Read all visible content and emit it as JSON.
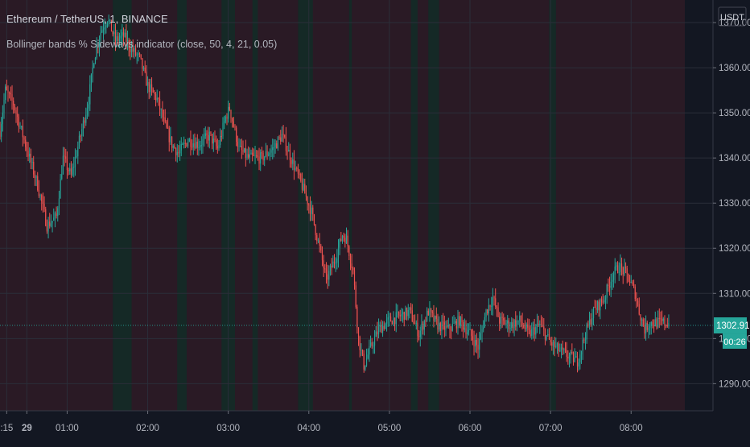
{
  "header": {
    "title": "Ethereum / TetherUS, 1, BINANCE",
    "indicator": "Bollinger bands % Sideways indicator (close, 50, 4, 21, 0.05)"
  },
  "axis": {
    "currency": "USDT",
    "current_price": "1302.91",
    "countdown": "00:26"
  },
  "colors": {
    "background": "#131722",
    "band_default": "#2a1a25",
    "band_sideways": "#142a26",
    "candle_up": "#26a69a",
    "candle_down": "#ef5350",
    "price_label": "#26a69a",
    "grid": "#2a2e39",
    "axis_text": "#b2b5be"
  },
  "chart_data": {
    "type": "candlestick",
    "title": "Ethereum / TetherUS, 1, BINANCE",
    "y_ticks": [
      1290,
      1300,
      1310,
      1320,
      1330,
      1340,
      1350,
      1360,
      1370
    ],
    "y_tick_labels": [
      "1290.00",
      "1300.00",
      "1310.00",
      "1320.00",
      "1330.00",
      "1340.00",
      "1350.00",
      "1360.00",
      "1370.00"
    ],
    "ylim": [
      1284,
      1375
    ],
    "x_tick_labels": [
      ":15",
      "29",
      "01:00",
      "02:00",
      "03:00",
      "04:00",
      "05:00",
      "06:00",
      "07:00",
      "08:00"
    ],
    "x_tick_minutes": [
      15,
      30,
      60,
      120,
      180,
      240,
      300,
      360,
      420,
      480
    ],
    "x_range_minutes": [
      10,
      520
    ],
    "last_candle_minute": 508,
    "sideways_periods": [
      [
        94,
        108
      ],
      [
        142,
        149
      ],
      [
        175,
        185
      ],
      [
        198,
        202
      ],
      [
        232,
        243
      ],
      [
        270,
        272
      ],
      [
        316,
        321
      ],
      [
        329,
        337
      ],
      [
        419,
        424
      ]
    ],
    "price_path": [
      [
        10,
        1346
      ],
      [
        14,
        1355
      ],
      [
        20,
        1352
      ],
      [
        30,
        1342
      ],
      [
        38,
        1334
      ],
      [
        45,
        1325
      ],
      [
        52,
        1327
      ],
      [
        57,
        1340
      ],
      [
        63,
        1336
      ],
      [
        70,
        1345
      ],
      [
        76,
        1353
      ],
      [
        80,
        1362
      ],
      [
        85,
        1368
      ],
      [
        90,
        1371
      ],
      [
        96,
        1366
      ],
      [
        102,
        1367
      ],
      [
        108,
        1364
      ],
      [
        114,
        1362
      ],
      [
        120,
        1356
      ],
      [
        127,
        1353
      ],
      [
        133,
        1347
      ],
      [
        138,
        1343
      ],
      [
        143,
        1341
      ],
      [
        150,
        1344
      ],
      [
        158,
        1343
      ],
      [
        166,
        1345
      ],
      [
        172,
        1342
      ],
      [
        178,
        1349
      ],
      [
        181,
        1351
      ],
      [
        188,
        1342
      ],
      [
        195,
        1340
      ],
      [
        205,
        1340
      ],
      [
        213,
        1342
      ],
      [
        220,
        1345
      ],
      [
        228,
        1339
      ],
      [
        236,
        1333
      ],
      [
        242,
        1328
      ],
      [
        248,
        1320
      ],
      [
        253,
        1313
      ],
      [
        260,
        1318
      ],
      [
        265,
        1323
      ],
      [
        268,
        1322
      ],
      [
        273,
        1315
      ],
      [
        277,
        1300
      ],
      [
        281,
        1294
      ],
      [
        286,
        1298
      ],
      [
        292,
        1302
      ],
      [
        300,
        1304
      ],
      [
        308,
        1305
      ],
      [
        315,
        1306
      ],
      [
        322,
        1301
      ],
      [
        329,
        1306
      ],
      [
        336,
        1303
      ],
      [
        344,
        1302
      ],
      [
        352,
        1304
      ],
      [
        360,
        1301
      ],
      [
        366,
        1298
      ],
      [
        372,
        1306
      ],
      [
        377,
        1309
      ],
      [
        382,
        1304
      ],
      [
        390,
        1303
      ],
      [
        397,
        1304
      ],
      [
        404,
        1301
      ],
      [
        412,
        1303
      ],
      [
        420,
        1299
      ],
      [
        428,
        1297
      ],
      [
        434,
        1296
      ],
      [
        440,
        1295
      ],
      [
        446,
        1301
      ],
      [
        452,
        1306
      ],
      [
        460,
        1309
      ],
      [
        466,
        1314
      ],
      [
        471,
        1316
      ],
      [
        477,
        1314
      ],
      [
        483,
        1310
      ],
      [
        486,
        1306
      ],
      [
        490,
        1302
      ],
      [
        494,
        1303.5
      ]
    ],
    "current_price": 1302.91
  }
}
